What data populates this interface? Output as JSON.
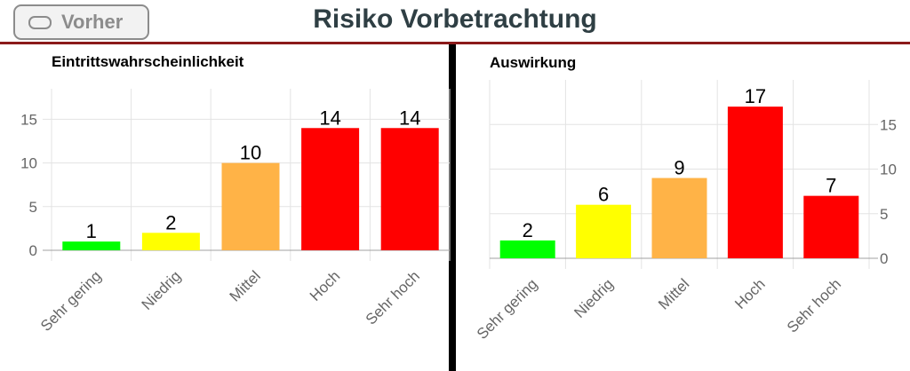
{
  "header": {
    "back_label": "Vorher",
    "title": "Risiko Vorbetrachtung"
  },
  "colors": {
    "header_border": "#8b1a1a",
    "sehr_gering": "#00ff00",
    "niedrig": "#ffff00",
    "mittel": "#ffb347",
    "hoch": "#ff0000",
    "sehr_hoch": "#ff0000"
  },
  "chart_data": [
    {
      "type": "bar",
      "title": "Eintrittswahrscheinlichkeit",
      "categories": [
        "Sehr gering",
        "Niedrig",
        "Mittel",
        "Hoch",
        "Sehr hoch"
      ],
      "values": [
        1,
        2,
        10,
        14,
        14
      ],
      "colors": [
        "#00ff00",
        "#ffff00",
        "#ffb347",
        "#ff0000",
        "#ff0000"
      ],
      "yticks": [
        "0",
        "5",
        "10",
        "15"
      ],
      "ylim": [
        0,
        18.5
      ],
      "y_axis_side": "left",
      "grid": true
    },
    {
      "type": "bar",
      "title": "Auswirkung",
      "categories": [
        "Sehr gering",
        "Niedrig",
        "Mittel",
        "Hoch",
        "Sehr hoch"
      ],
      "values": [
        2,
        6,
        9,
        17,
        7
      ],
      "colors": [
        "#00ff00",
        "#ffff00",
        "#ffb347",
        "#ff0000",
        "#ff0000"
      ],
      "yticks": [
        "0",
        "5",
        "10",
        "15"
      ],
      "ylim": [
        0,
        20
      ],
      "y_axis_side": "right",
      "grid": true
    }
  ]
}
